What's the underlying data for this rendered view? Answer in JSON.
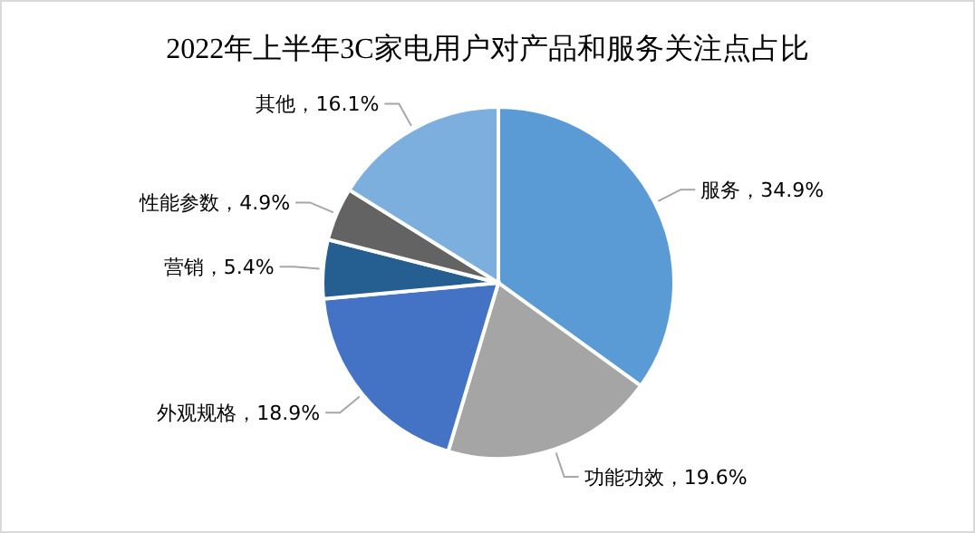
{
  "chart_data": {
    "type": "pie",
    "title": "2022年上半年3C家电用户对产品和服务关注点占比",
    "categories": [
      "服务",
      "功能功效",
      "外观规格",
      "营销",
      "性能参数",
      "其他"
    ],
    "values": [
      34.9,
      19.6,
      18.9,
      5.4,
      4.9,
      16.1
    ],
    "value_labels": [
      "34.9%",
      "19.6%",
      "18.9%",
      "5.4%",
      "4.9%",
      "16.1%"
    ],
    "colors": [
      "#5b9bd5",
      "#a5a5a5",
      "#4472c4",
      "#255e91",
      "#636363",
      "#7cafdd"
    ]
  }
}
